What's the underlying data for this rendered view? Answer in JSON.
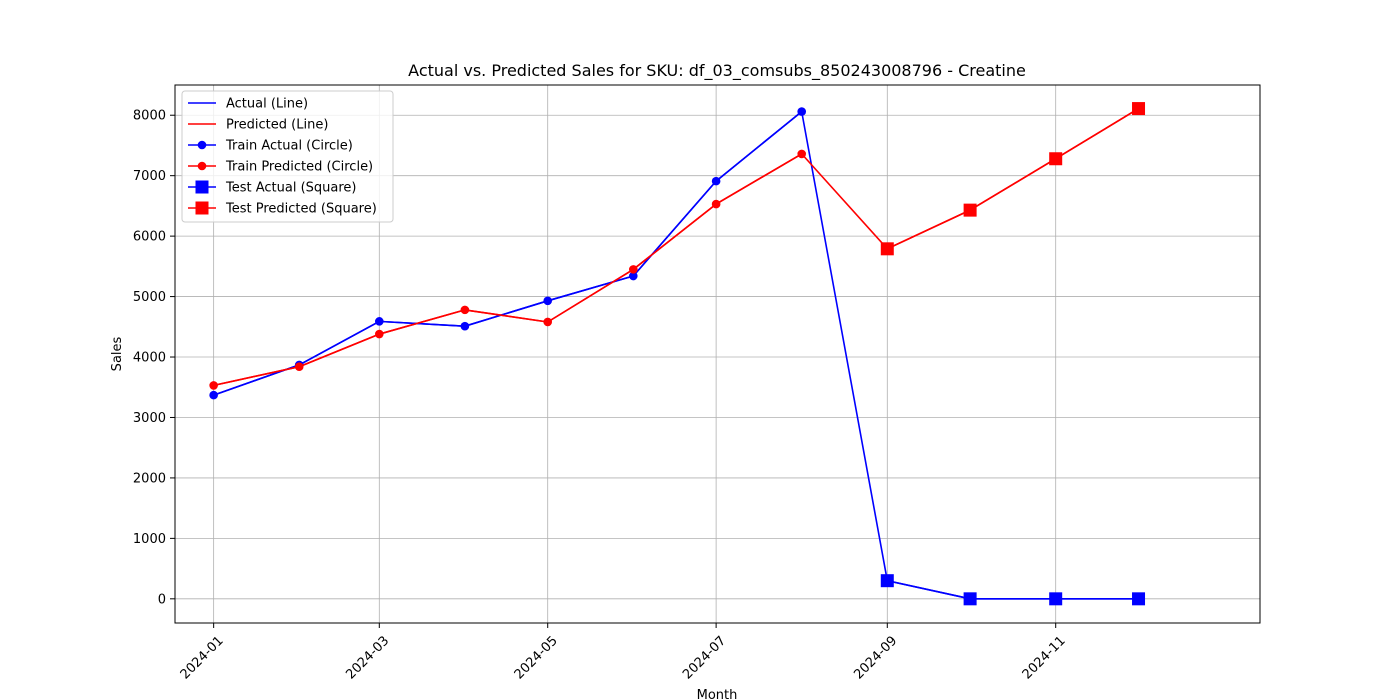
{
  "chart_data": {
    "type": "line",
    "title": "Actual vs. Predicted Sales for SKU: df_03_comsubs_850243008796 - Creatine",
    "xlabel": "Month",
    "ylabel": "Sales",
    "x_type": "date",
    "xlim": [
      "2023-12-18",
      "2025-01-14"
    ],
    "ylim": [
      -400,
      8500
    ],
    "x_ticks": [
      "2024-01-01",
      "2024-03-01",
      "2024-05-01",
      "2024-07-01",
      "2024-09-01",
      "2024-11-01"
    ],
    "x_tick_labels": [
      "2024-01",
      "2024-03",
      "2024-05",
      "2024-07",
      "2024-09",
      "2024-11"
    ],
    "y_ticks": [
      0,
      1000,
      2000,
      3000,
      4000,
      5000,
      6000,
      7000,
      8000
    ],
    "y_tick_labels": [
      "0",
      "1000",
      "2000",
      "3000",
      "4000",
      "5000",
      "6000",
      "7000",
      "8000"
    ],
    "grid": true,
    "legend_position": "top-left",
    "series": [
      {
        "name": "Actual (Line)",
        "color": "#0000ff",
        "marker": "none",
        "x": [
          "2024-01-01",
          "2024-02-01",
          "2024-03-01",
          "2024-04-01",
          "2024-05-01",
          "2024-06-01",
          "2024-07-01",
          "2024-08-01",
          "2024-09-01",
          "2024-10-01",
          "2024-11-01",
          "2024-12-01"
        ],
        "y": [
          3370,
          3870,
          4590,
          4510,
          4930,
          5340,
          6910,
          8060,
          300,
          0,
          0,
          0
        ]
      },
      {
        "name": "Predicted (Line)",
        "color": "#ff0000",
        "marker": "none",
        "x": [
          "2024-01-01",
          "2024-02-01",
          "2024-03-01",
          "2024-04-01",
          "2024-05-01",
          "2024-06-01",
          "2024-07-01",
          "2024-08-01",
          "2024-09-01",
          "2024-10-01",
          "2024-11-01",
          "2024-12-01"
        ],
        "y": [
          3530,
          3840,
          4380,
          4780,
          4580,
          5450,
          6530,
          7360,
          5790,
          6430,
          7280,
          8110
        ]
      },
      {
        "name": "Train Actual (Circle)",
        "color": "#0000ff",
        "marker": "circle",
        "x": [
          "2024-01-01",
          "2024-02-01",
          "2024-03-01",
          "2024-04-01",
          "2024-05-01",
          "2024-06-01",
          "2024-07-01",
          "2024-08-01"
        ],
        "y": [
          3370,
          3870,
          4590,
          4510,
          4930,
          5340,
          6910,
          8060
        ]
      },
      {
        "name": "Train Predicted (Circle)",
        "color": "#ff0000",
        "marker": "circle",
        "x": [
          "2024-01-01",
          "2024-02-01",
          "2024-03-01",
          "2024-04-01",
          "2024-05-01",
          "2024-06-01",
          "2024-07-01",
          "2024-08-01"
        ],
        "y": [
          3530,
          3840,
          4380,
          4780,
          4580,
          5450,
          6530,
          7360
        ]
      },
      {
        "name": "Test Actual (Square)",
        "color": "#0000ff",
        "marker": "square",
        "x": [
          "2024-09-01",
          "2024-10-01",
          "2024-11-01",
          "2024-12-01"
        ],
        "y": [
          300,
          0,
          0,
          0
        ]
      },
      {
        "name": "Test Predicted (Square)",
        "color": "#ff0000",
        "marker": "square",
        "x": [
          "2024-09-01",
          "2024-10-01",
          "2024-11-01",
          "2024-12-01"
        ],
        "y": [
          5790,
          6430,
          7280,
          8110
        ]
      }
    ]
  }
}
